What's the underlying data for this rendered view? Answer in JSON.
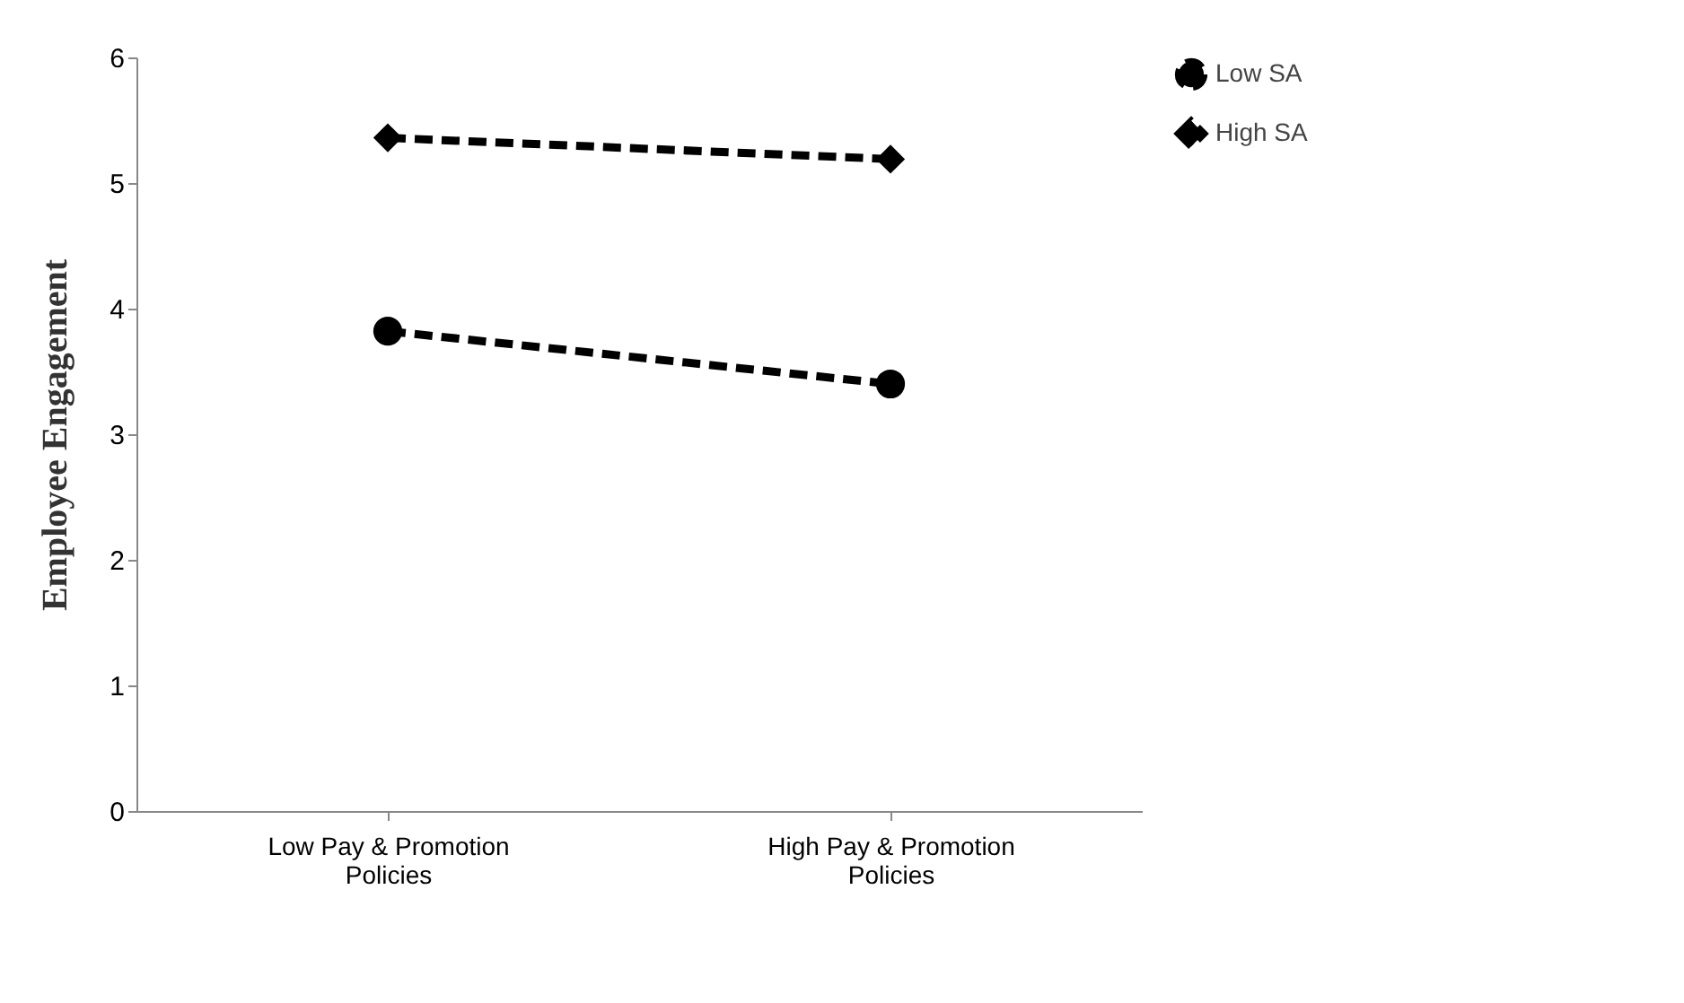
{
  "chart_data": {
    "type": "line",
    "ylabel": "Employee Engagement",
    "categories": [
      "Low Pay & Promotion Policies",
      "High Pay & Promotion Policies"
    ],
    "series": [
      {
        "name": "Low SA",
        "color": "#000000",
        "values": [
          3.82,
          3.4
        ],
        "marker": "circle",
        "line_style": "dashed"
      },
      {
        "name": "High SA",
        "color": "#000000",
        "values": [
          5.36,
          5.19
        ],
        "marker": "diamond",
        "line_style": "dashed"
      }
    ],
    "ylim": [
      0,
      6
    ],
    "yticks": [
      0,
      1,
      2,
      3,
      4,
      5,
      6
    ],
    "grid": false,
    "legend": "right"
  }
}
